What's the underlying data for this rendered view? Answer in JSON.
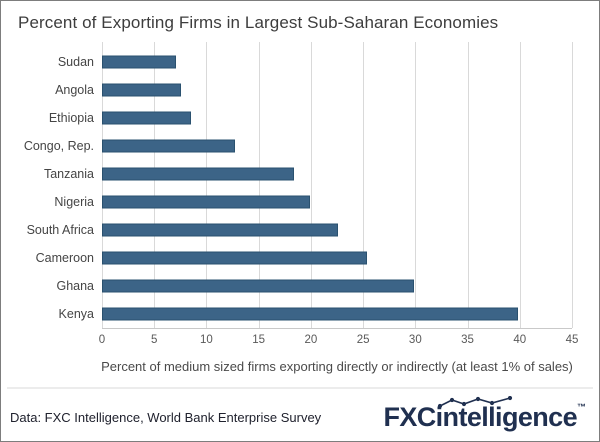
{
  "chart_data": {
    "type": "bar",
    "orientation": "horizontal",
    "title": "Percent of Exporting Firms in Largest Sub-Saharan Economies",
    "categories": [
      "Sudan",
      "Angola",
      "Ethiopia",
      "Congo, Rep.",
      "Tanzania",
      "Nigeria",
      "South Africa",
      "Cameroon",
      "Ghana",
      "Kenya"
    ],
    "values": [
      6.9,
      7.4,
      8.3,
      12.5,
      18.2,
      19.7,
      22.4,
      25.2,
      29.7,
      39.6
    ],
    "xlabel": "Percent of medium sized firms exporting directly or indirectly (at least 1% of sales)",
    "ylabel": "",
    "xlim": [
      0,
      45
    ],
    "xticks": [
      0,
      5,
      10,
      15,
      20,
      25,
      30,
      35,
      40,
      45
    ],
    "grid": true,
    "legend": false,
    "bar_fill": "#3c6487",
    "bar_border": "#2a516f",
    "gridline_color": "#d9d9d9"
  },
  "footer": {
    "source_text": "Data: FXC Intelligence, World Bank Enterprise Survey",
    "logo_fxc": "FXC",
    "logo_rest": "intelligence",
    "logo_tm": "™",
    "logo_color": "#203050",
    "sparkline_icon": "line-chart-sparkline-icon"
  }
}
